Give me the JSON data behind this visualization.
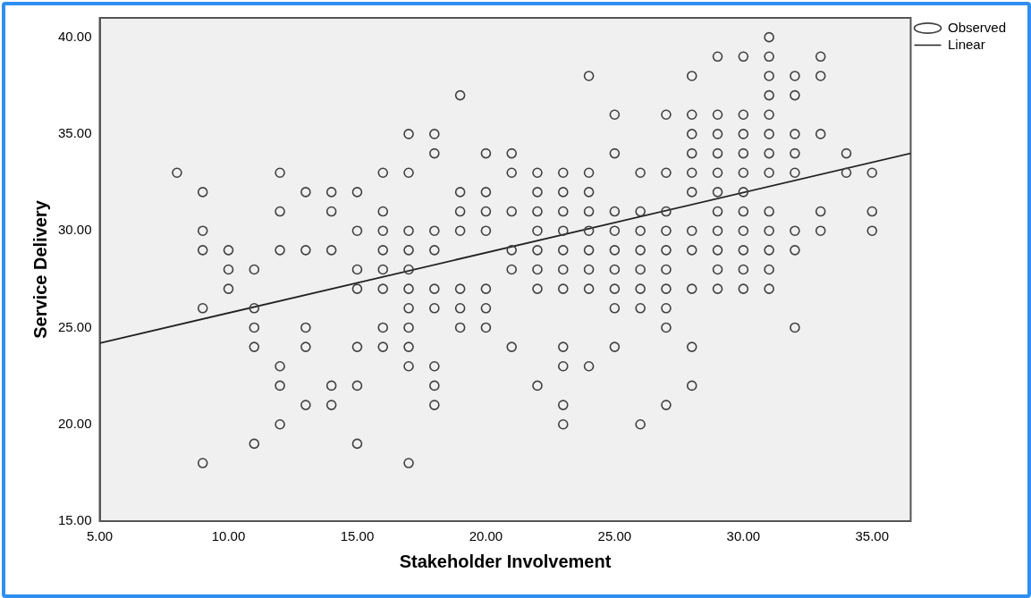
{
  "chart_data": {
    "type": "scatter",
    "xlabel": "Stakeholder Involvement",
    "ylabel": "Service Delivery",
    "xlim": [
      5,
      36.5
    ],
    "ylim": [
      15,
      41
    ],
    "xticks": [
      {
        "value": 5,
        "label": "5.00"
      },
      {
        "value": 10,
        "label": "10.00"
      },
      {
        "value": 15,
        "label": "15.00"
      },
      {
        "value": 20,
        "label": "20.00"
      },
      {
        "value": 25,
        "label": "25.00"
      },
      {
        "value": 30,
        "label": "30.00"
      },
      {
        "value": 35,
        "label": "35.00"
      }
    ],
    "yticks": [
      {
        "value": 15,
        "label": "15.00"
      },
      {
        "value": 20,
        "label": "20.00"
      },
      {
        "value": 25,
        "label": "25.00"
      },
      {
        "value": 30,
        "label": "30.00"
      },
      {
        "value": 35,
        "label": "35.00"
      },
      {
        "value": 40,
        "label": "40.00"
      }
    ],
    "grid": false,
    "legend": "top right",
    "marker": "circle",
    "series": [
      {
        "name": "Observed",
        "type": "scatter",
        "color": "#404040",
        "x": [
          8,
          9,
          9,
          9,
          9,
          9,
          10,
          10,
          10,
          11,
          11,
          11,
          11,
          11,
          12,
          12,
          12,
          12,
          12,
          12,
          13,
          13,
          13,
          13,
          13,
          14,
          14,
          14,
          14,
          14,
          15,
          15,
          15,
          15,
          15,
          15,
          15,
          16,
          16,
          16,
          16,
          16,
          16,
          16,
          16,
          17,
          17,
          17,
          17,
          17,
          17,
          17,
          17,
          17,
          17,
          17,
          18,
          18,
          18,
          18,
          18,
          18,
          18,
          18,
          18,
          19,
          19,
          19,
          19,
          19,
          19,
          19,
          20,
          20,
          20,
          20,
          20,
          20,
          20,
          21,
          21,
          21,
          21,
          21,
          21,
          22,
          22,
          22,
          22,
          22,
          22,
          22,
          22,
          23,
          23,
          23,
          23,
          23,
          23,
          23,
          23,
          23,
          23,
          23,
          24,
          24,
          24,
          24,
          24,
          24,
          24,
          24,
          24,
          25,
          25,
          25,
          25,
          25,
          25,
          25,
          25,
          25,
          26,
          26,
          26,
          26,
          26,
          26,
          26,
          26,
          27,
          27,
          27,
          27,
          27,
          27,
          27,
          27,
          27,
          27,
          28,
          28,
          28,
          28,
          28,
          28,
          28,
          28,
          28,
          28,
          28,
          29,
          29,
          29,
          29,
          29,
          29,
          29,
          29,
          29,
          29,
          29,
          30,
          30,
          30,
          30,
          30,
          30,
          30,
          30,
          30,
          30,
          30,
          31,
          31,
          31,
          31,
          31,
          31,
          31,
          31,
          31,
          31,
          31,
          31,
          31,
          32,
          32,
          32,
          32,
          32,
          32,
          32,
          32,
          33,
          33,
          33,
          33,
          33,
          34,
          34,
          35,
          35,
          35
        ],
        "values": [
          33,
          32,
          30,
          29,
          26,
          18,
          29,
          28,
          27,
          28,
          26,
          25,
          24,
          19,
          33,
          31,
          29,
          23,
          22,
          20,
          32,
          29,
          25,
          24,
          21,
          32,
          31,
          29,
          22,
          21,
          32,
          30,
          28,
          27,
          24,
          22,
          19,
          33,
          31,
          30,
          29,
          28,
          27,
          25,
          24,
          35,
          33,
          30,
          29,
          28,
          27,
          26,
          25,
          24,
          23,
          18,
          35,
          34,
          30,
          29,
          27,
          26,
          23,
          22,
          21,
          37,
          32,
          31,
          30,
          27,
          26,
          25,
          34,
          32,
          31,
          30,
          27,
          26,
          25,
          34,
          33,
          31,
          29,
          28,
          24,
          33,
          32,
          31,
          30,
          29,
          28,
          27,
          22,
          33,
          32,
          31,
          30,
          29,
          28,
          27,
          24,
          23,
          21,
          20,
          38,
          33,
          32,
          31,
          30,
          29,
          28,
          27,
          23,
          36,
          34,
          31,
          30,
          29,
          28,
          27,
          26,
          24,
          33,
          31,
          30,
          29,
          28,
          27,
          26,
          20,
          36,
          33,
          31,
          30,
          29,
          28,
          27,
          26,
          25,
          21,
          38,
          36,
          35,
          34,
          33,
          32,
          30,
          29,
          27,
          24,
          22,
          39,
          36,
          35,
          34,
          33,
          32,
          31,
          30,
          29,
          28,
          27,
          39,
          36,
          35,
          34,
          33,
          32,
          31,
          30,
          29,
          28,
          27,
          40,
          39,
          38,
          37,
          36,
          35,
          34,
          33,
          31,
          30,
          29,
          28,
          27,
          38,
          37,
          35,
          34,
          33,
          30,
          29,
          25,
          39,
          38,
          35,
          31,
          30,
          34,
          33,
          33,
          31,
          30
        ]
      },
      {
        "name": "Linear",
        "type": "line",
        "color": "#222222",
        "line_style": "solid",
        "marker": "none",
        "x": [
          5,
          36.5
        ],
        "values": [
          24.2,
          34
        ]
      }
    ]
  }
}
